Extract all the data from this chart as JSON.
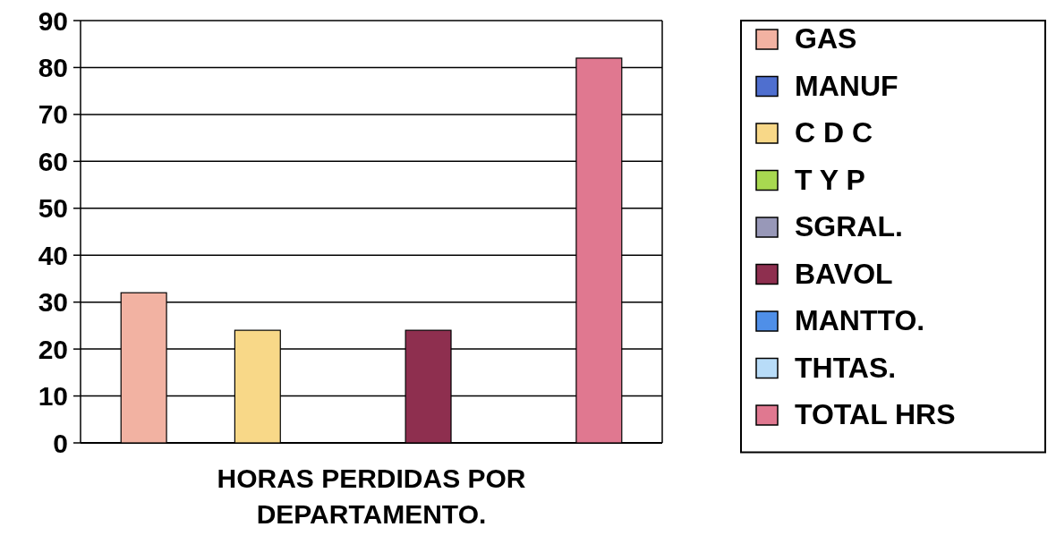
{
  "chart_data": {
    "type": "bar",
    "categories": [
      "HORAS PERDIDAS POR DEPARTAMENTO."
    ],
    "series": [
      {
        "name": "GAS",
        "color": "#f2b2a2",
        "values": [
          32
        ]
      },
      {
        "name": "MANUF",
        "color": "#4f6fcf",
        "values": [
          0
        ]
      },
      {
        "name": "C D C",
        "color": "#f8d888",
        "values": [
          24
        ]
      },
      {
        "name": "T Y P",
        "color": "#a8d850",
        "values": [
          0
        ]
      },
      {
        "name": "SGRAL.",
        "color": "#9898b8",
        "values": [
          0
        ]
      },
      {
        "name": "BAVOL",
        "color": "#8e2f4f",
        "values": [
          24
        ]
      },
      {
        "name": "MANTTO.",
        "color": "#4f8fe8",
        "values": [
          0
        ]
      },
      {
        "name": "THTAS.",
        "color": "#b8dcf8",
        "values": [
          0
        ]
      },
      {
        "name": "TOTAL HRS",
        "color": "#e07890",
        "values": [
          82
        ]
      }
    ],
    "ylim": [
      0,
      90
    ],
    "yticks": [
      0,
      10,
      20,
      30,
      40,
      50,
      60,
      70,
      80,
      90
    ],
    "grid": "y",
    "legend": "right"
  }
}
